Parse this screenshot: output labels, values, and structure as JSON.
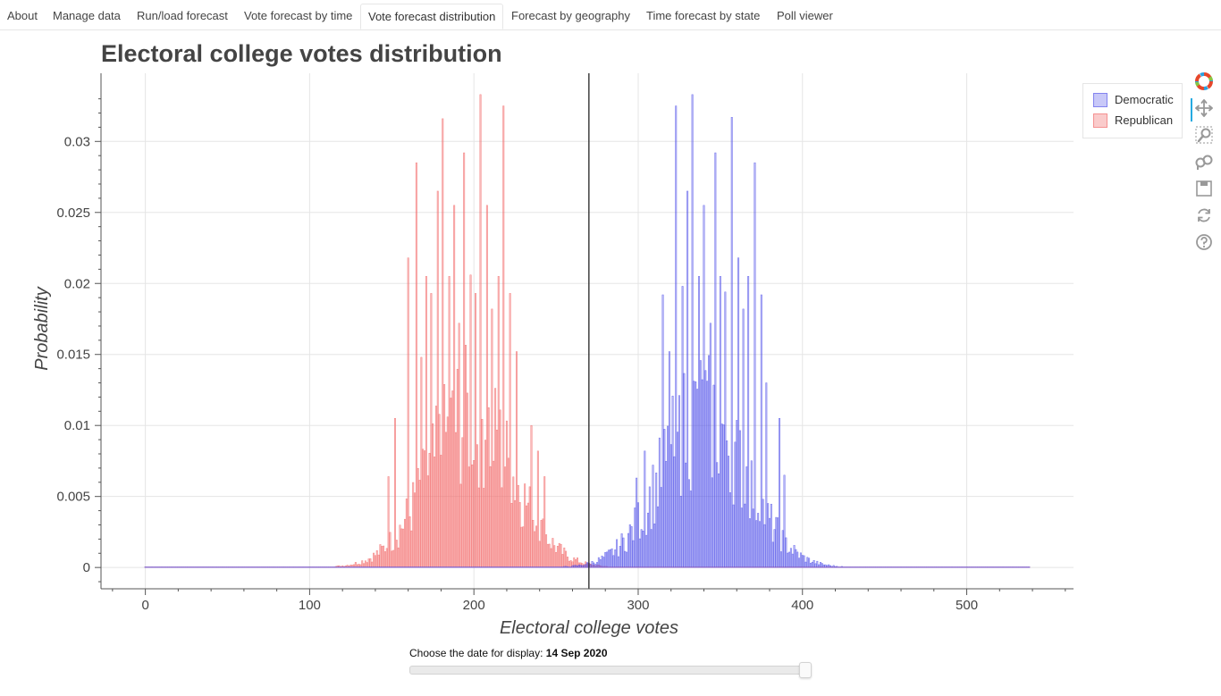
{
  "tabs": [
    {
      "label": "About",
      "active": false
    },
    {
      "label": "Manage data",
      "active": false
    },
    {
      "label": "Run/load forecast",
      "active": false
    },
    {
      "label": "Vote forecast by time",
      "active": false
    },
    {
      "label": "Vote forecast distribution",
      "active": true
    },
    {
      "label": "Forecast by geography",
      "active": false
    },
    {
      "label": "Time forecast by state",
      "active": false
    },
    {
      "label": "Poll viewer",
      "active": false
    }
  ],
  "slider": {
    "label": "Choose the date for display:",
    "value": "14 Sep 2020",
    "position_fraction": 1.0
  },
  "toolbar": {
    "tools": [
      "bokeh-logo-icon",
      "pan-icon",
      "box-zoom-icon",
      "wheel-zoom-icon",
      "save-icon",
      "reset-icon",
      "help-icon"
    ],
    "active_tool": "pan-icon"
  },
  "colors": {
    "democratic": "#4a4ae8",
    "republican": "#f26a6a",
    "threshold_line": "#333333"
  },
  "chart_data": {
    "type": "bar",
    "title": "Electoral college votes distribution",
    "xlabel": "Electoral college votes",
    "ylabel": "Probability",
    "xlim": [
      -27,
      565
    ],
    "ylim": [
      -0.0015,
      0.0348
    ],
    "xticks": [
      0,
      100,
      200,
      300,
      400,
      500
    ],
    "yticks": [
      0,
      0.005,
      0.01,
      0.015,
      0.02,
      0.025,
      0.03
    ],
    "ytick_labels": [
      "0",
      "0.005",
      "0.01",
      "0.015",
      "0.02",
      "0.025",
      "0.03"
    ],
    "x_range": [
      0,
      538
    ],
    "threshold_votes": 270,
    "grid": true,
    "legend_position": "outside-right-top",
    "series": [
      {
        "name": "Democratic",
        "color": "#4a4ae8",
        "background_mean": 340,
        "background_sd": 26,
        "background_peak": 0.0122,
        "peaks": [
          [
            315,
            0.0192
          ],
          [
            319,
            0.0152
          ],
          [
            323,
            0.0325
          ],
          [
            327,
            0.0198
          ],
          [
            330,
            0.0265
          ],
          [
            333,
            0.0333
          ],
          [
            337,
            0.0205
          ],
          [
            340,
            0.0255
          ],
          [
            344,
            0.0172
          ],
          [
            347,
            0.0292
          ],
          [
            350,
            0.0205
          ],
          [
            353,
            0.0194
          ],
          [
            357,
            0.0317
          ],
          [
            361,
            0.0218
          ],
          [
            364,
            0.0182
          ],
          [
            367,
            0.0205
          ],
          [
            371,
            0.0285
          ],
          [
            375,
            0.0192
          ],
          [
            378,
            0.013
          ],
          [
            386,
            0.0105
          ],
          [
            389,
            0.0065
          ],
          [
            304,
            0.0082
          ],
          [
            299,
            0.0063
          ]
        ]
      },
      {
        "name": "Republican",
        "color": "#f26a6a",
        "background_mean": 198,
        "background_sd": 26,
        "background_peak": 0.0122,
        "peaks": [
          [
            148,
            0.0064
          ],
          [
            152,
            0.0105
          ],
          [
            160,
            0.0218
          ],
          [
            165,
            0.0285
          ],
          [
            168,
            0.0148
          ],
          [
            171,
            0.0205
          ],
          [
            174,
            0.0193
          ],
          [
            178,
            0.0265
          ],
          [
            181,
            0.0316
          ],
          [
            185,
            0.0205
          ],
          [
            188,
            0.0255
          ],
          [
            191,
            0.0172
          ],
          [
            194,
            0.0292
          ],
          [
            198,
            0.0206
          ],
          [
            201,
            0.0193
          ],
          [
            204,
            0.0333
          ],
          [
            208,
            0.0255
          ],
          [
            211,
            0.0182
          ],
          [
            215,
            0.0205
          ],
          [
            218,
            0.0325
          ],
          [
            222,
            0.0193
          ],
          [
            226,
            0.0152
          ],
          [
            235,
            0.01
          ],
          [
            239,
            0.0082
          ],
          [
            243,
            0.0064
          ]
        ]
      }
    ]
  }
}
